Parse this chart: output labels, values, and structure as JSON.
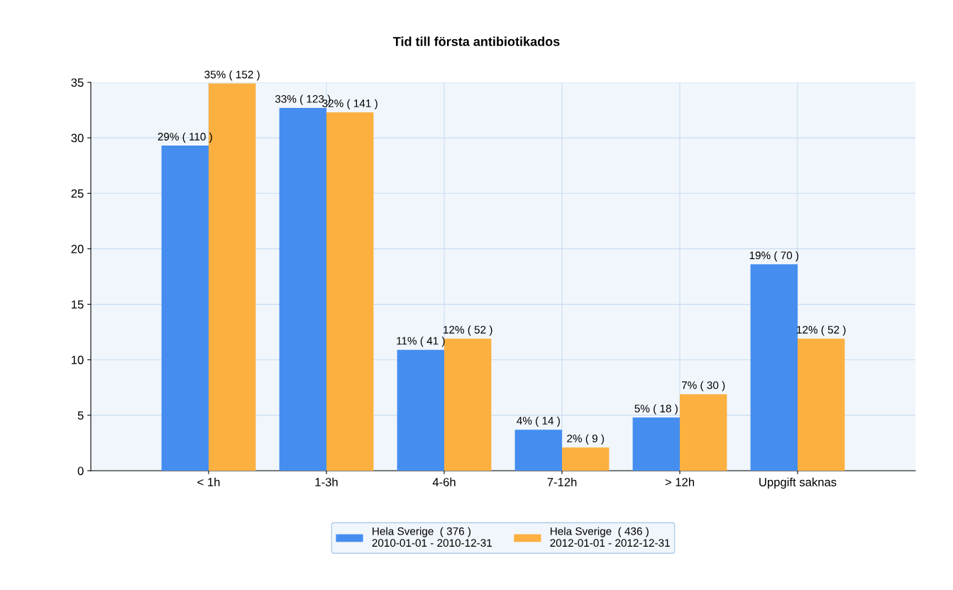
{
  "chart_data": {
    "type": "bar",
    "title": "Tid till första antibiotikados",
    "categories": [
      "< 1h",
      "1-3h",
      "4-6h",
      "7-12h",
      "> 12h",
      "Uppgift saknas"
    ],
    "series": [
      {
        "name": "Hela Sverige  ( 376 )\n2010-01-01 - 2010-12-31",
        "color": "#458ef0",
        "values": [
          29.3,
          32.7,
          10.9,
          3.7,
          4.8,
          18.6
        ],
        "value_labels": [
          "29% ( 110 )",
          "33% ( 123 )",
          "11% ( 41 )",
          "4% ( 14 )",
          "5% ( 18 )",
          "19% ( 70 )"
        ]
      },
      {
        "name": "Hela Sverige  ( 436 )\n2012-01-01 - 2012-12-31",
        "color": "#fbb040",
        "values": [
          34.9,
          32.3,
          11.9,
          2.1,
          6.9,
          11.9
        ],
        "value_labels": [
          "35% ( 152 )",
          "32% ( 141 )",
          "12% ( 52 )",
          "2% ( 9 )",
          "7% ( 30 )",
          "12% ( 52 )"
        ]
      }
    ],
    "ylim": [
      0,
      35
    ],
    "yticks": [
      0,
      5,
      10,
      15,
      20,
      25,
      30,
      35
    ],
    "grid": true,
    "legend": "bottom"
  }
}
